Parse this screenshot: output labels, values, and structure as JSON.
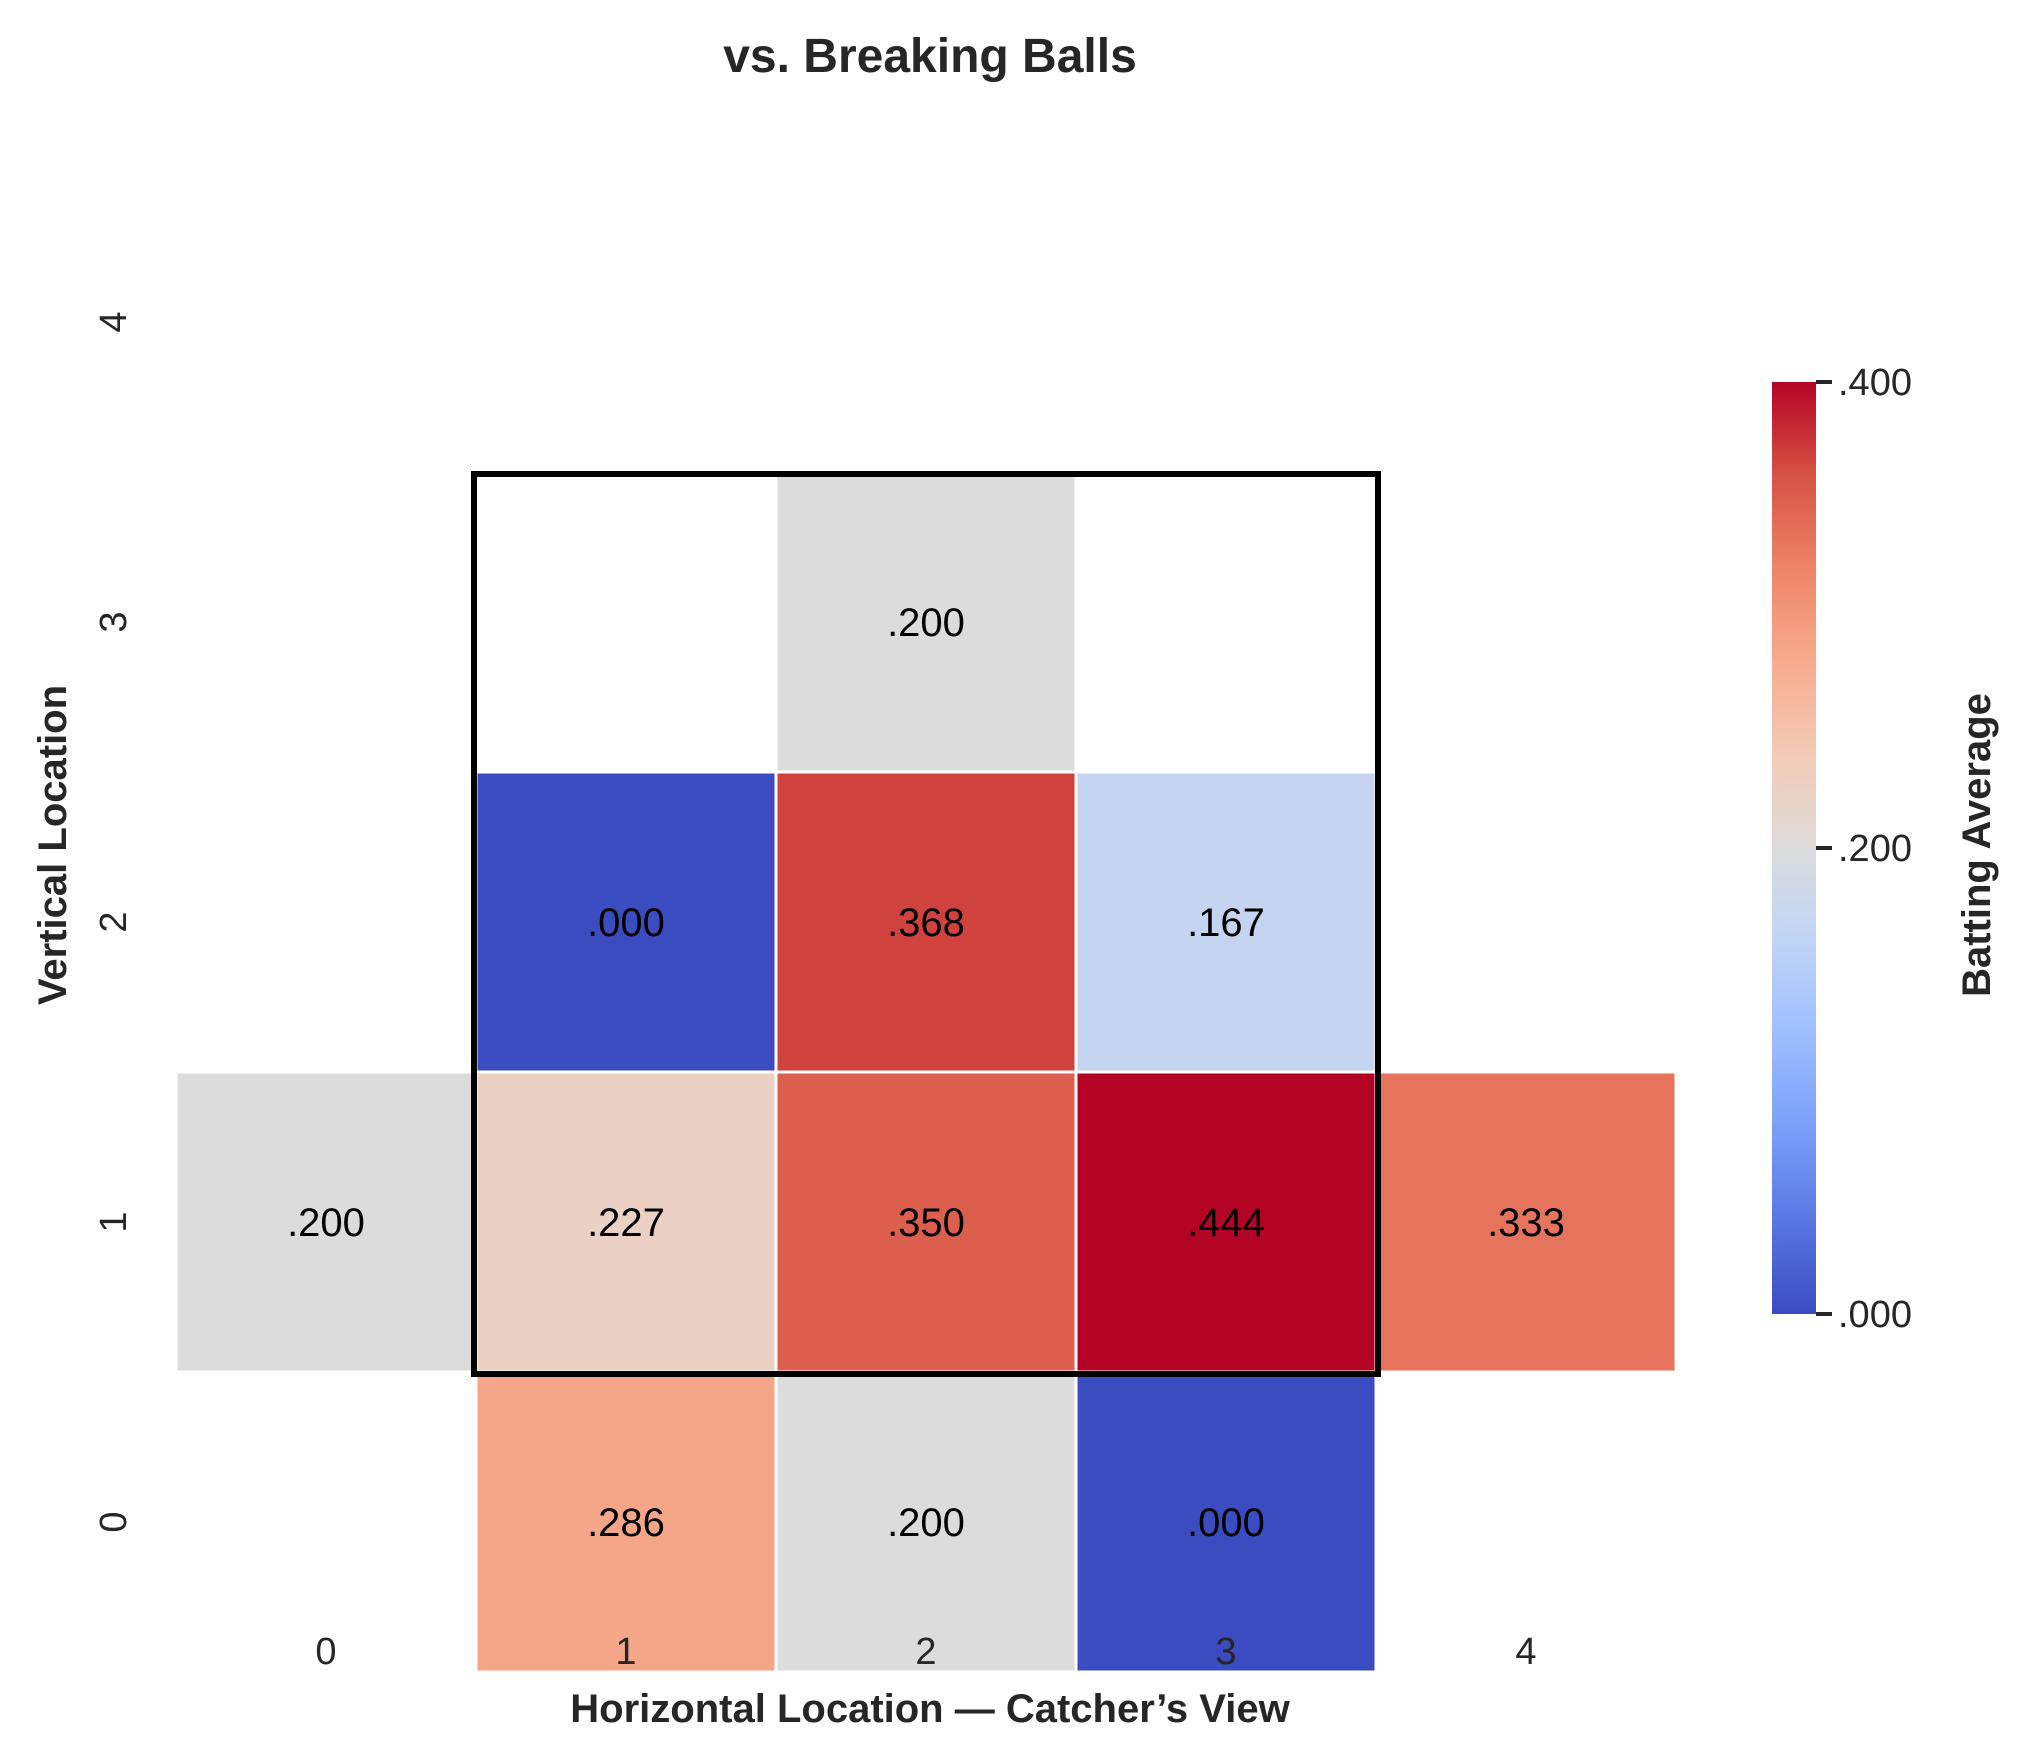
{
  "chart_data": {
    "type": "heatmap",
    "title": "vs. Breaking Balls",
    "xlabel": "Horizontal Location — Catcher’s View",
    "ylabel": "Vertical Location",
    "x_ticks": [
      "0",
      "1",
      "2",
      "3",
      "4"
    ],
    "y_ticks": [
      "4",
      "3",
      "2",
      "1",
      "0"
    ],
    "cells": [
      {
        "x": 2,
        "y": 3,
        "value": 0.2,
        "label": ".200"
      },
      {
        "x": 1,
        "y": 2,
        "value": 0.0,
        "label": ".000"
      },
      {
        "x": 2,
        "y": 2,
        "value": 0.368,
        "label": ".368"
      },
      {
        "x": 3,
        "y": 2,
        "value": 0.167,
        "label": ".167"
      },
      {
        "x": 0,
        "y": 1,
        "value": 0.2,
        "label": ".200"
      },
      {
        "x": 1,
        "y": 1,
        "value": 0.227,
        "label": ".227"
      },
      {
        "x": 2,
        "y": 1,
        "value": 0.35,
        "label": ".350"
      },
      {
        "x": 3,
        "y": 1,
        "value": 0.444,
        "label": ".444"
      },
      {
        "x": 4,
        "y": 1,
        "value": 0.333,
        "label": ".333"
      },
      {
        "x": 1,
        "y": 0,
        "value": 0.286,
        "label": ".286"
      },
      {
        "x": 2,
        "y": 0,
        "value": 0.2,
        "label": ".200"
      },
      {
        "x": 3,
        "y": 0,
        "value": 0.0,
        "label": ".000"
      }
    ],
    "strike_zone": {
      "x_range": [
        1,
        3
      ],
      "y_range": [
        1,
        3
      ]
    },
    "colorbar": {
      "label": "Batting Average",
      "min": 0.0,
      "max": 0.4,
      "ticks": [
        ".400",
        ".200",
        ".000"
      ],
      "tick_values": [
        0.4,
        0.2,
        0.0
      ],
      "colormap": "coolwarm",
      "stops": [
        "#3b4cc0",
        "#5977e3",
        "#7b9ff9",
        "#9ebeff",
        "#c0d4f5",
        "#dddcdc",
        "#f2cbb7",
        "#f7ac8e",
        "#ee8468",
        "#d65244",
        "#b40426"
      ]
    },
    "grid": false
  }
}
